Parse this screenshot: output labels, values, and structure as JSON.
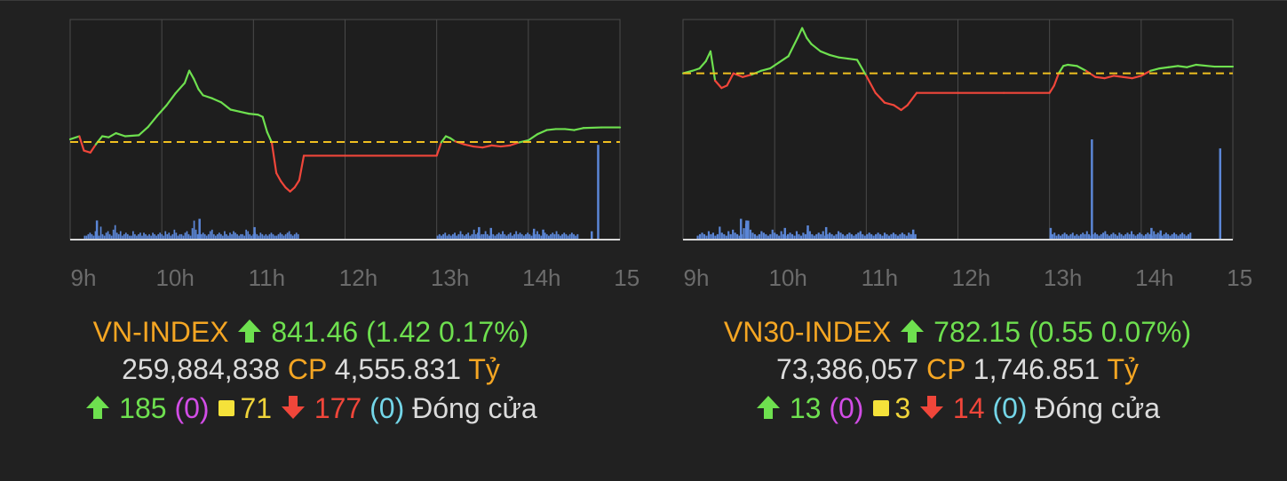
{
  "colors": {
    "background": "#212121",
    "up": "#6ee04f",
    "down": "#f0463a",
    "reference": "#f0c020",
    "volume": "#5b86d6",
    "index_name": "#f5a623"
  },
  "panels": [
    {
      "name": "VN-INDEX",
      "value": "841.46",
      "change": "(1.42 0.17%)",
      "volume": "259,884,838",
      "volume_unit": "CP",
      "turnover": "4,555.831",
      "turnover_unit": "Tỷ",
      "advancers": "185",
      "ceiling": "(0)",
      "unchanged": "71",
      "decliners": "177",
      "floor": "(0)",
      "status": "Đóng cửa"
    },
    {
      "name": "VN30-INDEX",
      "value": "782.15",
      "change": "(0.55 0.07%)",
      "volume": "73,386,057",
      "volume_unit": "CP",
      "turnover": "1,746.851",
      "turnover_unit": "Tỷ",
      "advancers": "13",
      "ceiling": "(0)",
      "unchanged": "3",
      "decliners": "14",
      "floor": "(0)",
      "status": "Đóng cửa"
    }
  ],
  "chart_data": [
    {
      "type": "line",
      "x_tick_labels": [
        "9h",
        "10h",
        "11h",
        "12h",
        "13h",
        "14h",
        "15h"
      ],
      "xlim": [
        9,
        15
      ],
      "reference_value": 840.04,
      "ylim": [
        830.5,
        852
      ],
      "series": [
        {
          "x": [
            9.0,
            9.1,
            9.15,
            9.22,
            9.28,
            9.35,
            9.42,
            9.5,
            9.6,
            9.75,
            9.85,
            9.95,
            10.05,
            10.15,
            10.25,
            10.3,
            10.35,
            10.4,
            10.45,
            10.55,
            10.65,
            10.75,
            10.85,
            10.95,
            11.05,
            11.1,
            11.15,
            11.2,
            11.25,
            11.3,
            11.35,
            11.4,
            11.45,
            11.5,
            11.55,
            12.0,
            12.5,
            13.0,
            13.05,
            13.1,
            13.15,
            13.2,
            13.3,
            13.4,
            13.5,
            13.6,
            13.7,
            13.8,
            13.9,
            14.0,
            14.1,
            14.2,
            14.3,
            14.4,
            14.5,
            14.6,
            14.8,
            15.0
          ],
          "y": [
            840.3,
            840.6,
            839.2,
            839.0,
            839.8,
            840.6,
            840.5,
            840.9,
            840.6,
            840.7,
            841.5,
            842.6,
            843.6,
            844.8,
            845.8,
            847.0,
            846.2,
            845.2,
            844.6,
            844.3,
            843.9,
            843.2,
            843.0,
            842.8,
            842.7,
            842.5,
            841.0,
            840.0,
            837.0,
            836.2,
            835.6,
            835.2,
            835.6,
            836.3,
            838.7,
            838.7,
            838.7,
            838.7,
            840.0,
            840.6,
            840.4,
            840.1,
            839.8,
            839.6,
            839.5,
            839.7,
            839.6,
            839.7,
            840.0,
            840.2,
            840.8,
            841.2,
            841.3,
            841.3,
            841.2,
            841.4,
            841.46,
            841.46
          ]
        }
      ],
      "volume_series": [
        {
          "session": "morning",
          "x_start": 9.15,
          "x_end": 11.5,
          "values": [
            2,
            2,
            3,
            4,
            3,
            2,
            5,
            3,
            2,
            8,
            3,
            2,
            4,
            5,
            3,
            2,
            6,
            9,
            4,
            3,
            5,
            2,
            3,
            4,
            3,
            2,
            2,
            5,
            3,
            2,
            3,
            4,
            2,
            4,
            3,
            2,
            3,
            2,
            4,
            3,
            2,
            3,
            4,
            3,
            2,
            5,
            3,
            4,
            2,
            3,
            6,
            4,
            2,
            3,
            3,
            2,
            4,
            5,
            3,
            2,
            7,
            12,
            6,
            3,
            5,
            3,
            4,
            3,
            2,
            3,
            5,
            6,
            3,
            2,
            3,
            4,
            3,
            2,
            5,
            3,
            2,
            4,
            3,
            5,
            4,
            3,
            2,
            3,
            3,
            2,
            6,
            5,
            3,
            2,
            3,
            4,
            3,
            2,
            4,
            3,
            2,
            3,
            2,
            3,
            4,
            3,
            2,
            2,
            3,
            4,
            3,
            2,
            3,
            4,
            5,
            3,
            2,
            3,
            4,
            3
          ],
          "spikes": [
            [
              9.28,
              22
            ],
            [
              10.4,
              24
            ],
            [
              11.0,
              14
            ]
          ]
        },
        {
          "session": "afternoon",
          "x_start": 13.0,
          "x_end": 14.55,
          "values": [
            2,
            3,
            2,
            3,
            4,
            2,
            3,
            2,
            3,
            4,
            2,
            3,
            5,
            3,
            2,
            3,
            4,
            2,
            3,
            6,
            3,
            4,
            2,
            3,
            3,
            5,
            3,
            2,
            4,
            3,
            2,
            3,
            4,
            3,
            5,
            3,
            2,
            3,
            4,
            2,
            3,
            5,
            3,
            4,
            3,
            2,
            3,
            4,
            3,
            2,
            4,
            3,
            5,
            3,
            2,
            3,
            4,
            3,
            2,
            3,
            4,
            3,
            5,
            3,
            2,
            3,
            4,
            3,
            2,
            3,
            4,
            3,
            2,
            3
          ],
          "spikes": [
            [
              13.45,
              14
            ],
            [
              13.58,
              13
            ],
            [
              14.05,
              12
            ],
            [
              14.15,
              11
            ],
            [
              14.68,
              9
            ],
            [
              14.75,
              52
            ]
          ]
        }
      ]
    },
    {
      "type": "line",
      "x_tick_labels": [
        "9h",
        "10h",
        "11h",
        "12h",
        "13h",
        "14h",
        "15h"
      ],
      "xlim": [
        9,
        15
      ],
      "reference_value": 781.6,
      "ylim": [
        768,
        786
      ],
      "series": [
        {
          "x": [
            9.0,
            9.1,
            9.18,
            9.25,
            9.3,
            9.35,
            9.42,
            9.48,
            9.55,
            9.65,
            9.75,
            9.85,
            9.95,
            10.05,
            10.15,
            10.25,
            10.3,
            10.35,
            10.4,
            10.5,
            10.6,
            10.7,
            10.8,
            10.9,
            11.0,
            11.1,
            11.2,
            11.3,
            11.38,
            11.45,
            11.55,
            12.0,
            12.5,
            13.0,
            13.05,
            13.1,
            13.15,
            13.2,
            13.3,
            13.4,
            13.5,
            13.6,
            13.7,
            13.8,
            13.9,
            14.0,
            14.1,
            14.2,
            14.3,
            14.4,
            14.5,
            14.6,
            14.8,
            15.0
          ],
          "y": [
            781.6,
            781.8,
            782.0,
            782.6,
            783.4,
            781.0,
            780.4,
            780.6,
            781.6,
            781.3,
            781.5,
            781.8,
            782.0,
            782.5,
            783.0,
            784.5,
            785.3,
            784.5,
            784.0,
            783.4,
            783.1,
            782.9,
            782.8,
            782.7,
            781.4,
            780.0,
            779.2,
            779.0,
            778.6,
            779.0,
            780.0,
            780.0,
            780.0,
            780.0,
            780.6,
            781.6,
            782.2,
            782.3,
            782.2,
            781.8,
            781.3,
            781.2,
            781.4,
            781.3,
            781.2,
            781.4,
            781.8,
            782.0,
            782.1,
            782.2,
            782.1,
            782.3,
            782.15,
            782.15
          ]
        }
      ],
      "volume_series": [
        {
          "session": "morning",
          "x_start": 9.15,
          "x_end": 11.55,
          "values": [
            2,
            3,
            4,
            3,
            2,
            5,
            3,
            4,
            2,
            3,
            8,
            4,
            3,
            2,
            5,
            3,
            6,
            4,
            3,
            2,
            3,
            7,
            10,
            12,
            6,
            4,
            3,
            2,
            3,
            5,
            4,
            3,
            2,
            3,
            6,
            4,
            3,
            2,
            5,
            3,
            2,
            3,
            4,
            3,
            2,
            5,
            3,
            2,
            4,
            3,
            6,
            5,
            3,
            2,
            3,
            4,
            3,
            5,
            2,
            3,
            4,
            3,
            2,
            3,
            5,
            4,
            3,
            2,
            3,
            4,
            3,
            2,
            3,
            4,
            5,
            3,
            2,
            3,
            4,
            3,
            2,
            3,
            4,
            3,
            2,
            4,
            3,
            2,
            3,
            4,
            3,
            2,
            3,
            4,
            3,
            2,
            4,
            3,
            2,
            3
          ],
          "spikes": [
            [
              9.62,
              24
            ],
            [
              9.68,
              22
            ],
            [
              10.1,
              13
            ],
            [
              10.35,
              16
            ],
            [
              10.55,
              14
            ],
            [
              11.5,
              11
            ]
          ]
        },
        {
          "session": "afternoon",
          "x_start": 13.0,
          "x_end": 14.55,
          "values": [
            2,
            3,
            4,
            2,
            3,
            2,
            3,
            4,
            3,
            2,
            3,
            4,
            2,
            3,
            2,
            3,
            4,
            3,
            5,
            3,
            2,
            3,
            4,
            3,
            2,
            3,
            4,
            5,
            3,
            2,
            3,
            4,
            3,
            2,
            4,
            3,
            2,
            3,
            4,
            3,
            5,
            3,
            2,
            3,
            4,
            3,
            2,
            3,
            4,
            3,
            2,
            5,
            3,
            4,
            3,
            2,
            3,
            4,
            3,
            2,
            3,
            4,
            3,
            2,
            3,
            4,
            3,
            2,
            3,
            4
          ],
          "spikes": [
            [
              13.0,
              13
            ],
            [
              13.45,
              55
            ],
            [
              14.1,
              13
            ],
            [
              14.2,
              10
            ],
            [
              14.85,
              50
            ]
          ]
        }
      ]
    }
  ]
}
